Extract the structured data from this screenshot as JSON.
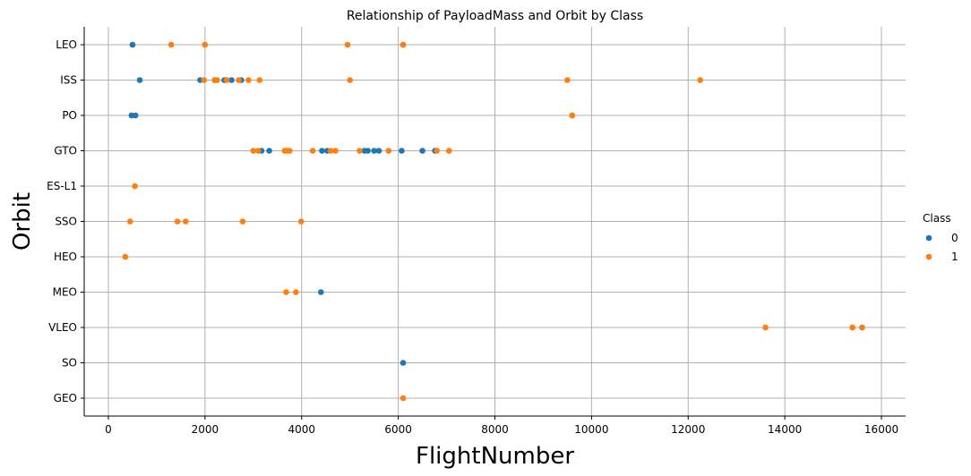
{
  "chart_data": {
    "type": "scatter",
    "title": "Relationship of PayloadMass and Orbit by Class",
    "xlabel": "FlightNumber",
    "ylabel": "Orbit",
    "xlim": [
      -500,
      16500
    ],
    "xticks": [
      0,
      2000,
      4000,
      6000,
      8000,
      10000,
      12000,
      14000,
      16000
    ],
    "categories": [
      "LEO",
      "ISS",
      "PO",
      "GTO",
      "ES-L1",
      "SSO",
      "HEO",
      "MEO",
      "VLEO",
      "SO",
      "GEO"
    ],
    "grid": true,
    "legend": {
      "title": "Class",
      "placement": "right"
    },
    "series": [
      {
        "name": "0",
        "color": "#1f77b4",
        "points": [
          {
            "x": 500,
            "y": "LEO"
          },
          {
            "x": 6100,
            "y": "LEO"
          },
          {
            "x": 1900,
            "y": "ISS"
          },
          {
            "x": 2200,
            "y": "ISS"
          },
          {
            "x": 2400,
            "y": "ISS"
          },
          {
            "x": 2550,
            "y": "ISS"
          },
          {
            "x": 2750,
            "y": "ISS"
          },
          {
            "x": 650,
            "y": "ISS"
          },
          {
            "x": 480,
            "y": "PO"
          },
          {
            "x": 560,
            "y": "PO"
          },
          {
            "x": 9600,
            "y": "PO"
          },
          {
            "x": 3170,
            "y": "GTO"
          },
          {
            "x": 3330,
            "y": "GTO"
          },
          {
            "x": 4420,
            "y": "GTO"
          },
          {
            "x": 4530,
            "y": "GTO"
          },
          {
            "x": 5300,
            "y": "GTO"
          },
          {
            "x": 5370,
            "y": "GTO"
          },
          {
            "x": 5500,
            "y": "GTO"
          },
          {
            "x": 5600,
            "y": "GTO"
          },
          {
            "x": 6070,
            "y": "GTO"
          },
          {
            "x": 6500,
            "y": "GTO"
          },
          {
            "x": 6760,
            "y": "GTO"
          },
          {
            "x": 4400,
            "y": "MEO"
          },
          {
            "x": 15600,
            "y": "VLEO"
          },
          {
            "x": 6100,
            "y": "SO"
          }
        ]
      },
      {
        "name": "1",
        "color": "#ff7f0e",
        "points": [
          {
            "x": 1300,
            "y": "LEO"
          },
          {
            "x": 2000,
            "y": "LEO"
          },
          {
            "x": 4950,
            "y": "LEO"
          },
          {
            "x": 6100,
            "y": "LEO"
          },
          {
            "x": 1980,
            "y": "ISS"
          },
          {
            "x": 2200,
            "y": "ISS"
          },
          {
            "x": 2250,
            "y": "ISS"
          },
          {
            "x": 2450,
            "y": "ISS"
          },
          {
            "x": 2700,
            "y": "ISS"
          },
          {
            "x": 2900,
            "y": "ISS"
          },
          {
            "x": 3130,
            "y": "ISS"
          },
          {
            "x": 5000,
            "y": "ISS"
          },
          {
            "x": 9500,
            "y": "ISS"
          },
          {
            "x": 12250,
            "y": "ISS"
          },
          {
            "x": 9600,
            "y": "PO"
          },
          {
            "x": 3000,
            "y": "GTO"
          },
          {
            "x": 3100,
            "y": "GTO"
          },
          {
            "x": 3650,
            "y": "GTO"
          },
          {
            "x": 3700,
            "y": "GTO"
          },
          {
            "x": 3750,
            "y": "GTO"
          },
          {
            "x": 4230,
            "y": "GTO"
          },
          {
            "x": 4600,
            "y": "GTO"
          },
          {
            "x": 4700,
            "y": "GTO"
          },
          {
            "x": 5200,
            "y": "GTO"
          },
          {
            "x": 5800,
            "y": "GTO"
          },
          {
            "x": 6800,
            "y": "GTO"
          },
          {
            "x": 7050,
            "y": "GTO"
          },
          {
            "x": 550,
            "y": "ES-L1"
          },
          {
            "x": 450,
            "y": "SSO"
          },
          {
            "x": 1430,
            "y": "SSO"
          },
          {
            "x": 1600,
            "y": "SSO"
          },
          {
            "x": 2780,
            "y": "SSO"
          },
          {
            "x": 3990,
            "y": "SSO"
          },
          {
            "x": 350,
            "y": "HEO"
          },
          {
            "x": 3680,
            "y": "MEO"
          },
          {
            "x": 3880,
            "y": "MEO"
          },
          {
            "x": 13600,
            "y": "VLEO"
          },
          {
            "x": 15400,
            "y": "VLEO"
          },
          {
            "x": 15400,
            "y": "VLEO"
          },
          {
            "x": 15600,
            "y": "VLEO"
          },
          {
            "x": 6100,
            "y": "GEO"
          }
        ]
      }
    ]
  }
}
